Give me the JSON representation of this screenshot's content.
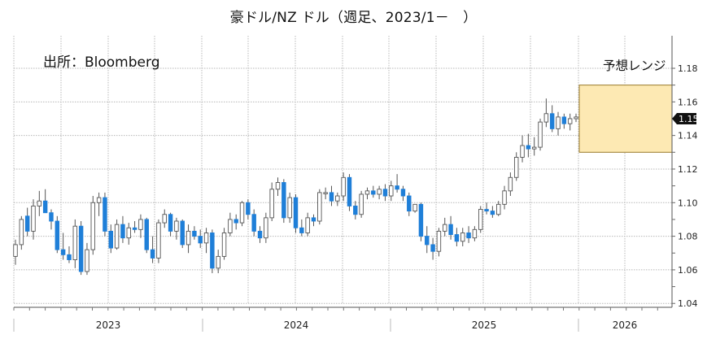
{
  "title": "豪ドル/NZ ドル（週足、2023/1－　）",
  "source_label": "出所：Bloomberg",
  "range_label": "予想レンジ",
  "colors": {
    "up_fill": "#ffffff",
    "up_stroke": "#555555",
    "down_fill": "#1f7fd8",
    "down_stroke": "#1f7fd8",
    "wick": "#555555",
    "grid": "#b8b8b8",
    "range_fill": "#fde9b3",
    "range_stroke": "#9a7a2a",
    "last_value_bg": "#111111"
  },
  "chart_data": {
    "type": "candlestick",
    "title": "豪ドル/NZ ドル（週足、2023/1－　）",
    "xlabel": "",
    "ylabel": "",
    "ylim": [
      1.037,
      1.19
    ],
    "yticks": [
      "1.18",
      "1.16",
      "1.14",
      "1.12",
      "1.10",
      "1.08",
      "1.06",
      "1.04"
    ],
    "xticks": [
      "2023",
      "2024",
      "2025",
      "2026"
    ],
    "last_value": "1.15",
    "forecast_range": {
      "label": "予想レンジ",
      "low": 1.13,
      "high": 1.17,
      "period": "2026"
    },
    "grid": true,
    "candles": [
      {
        "o": 1.068,
        "h": 1.078,
        "l": 1.063,
        "c": 1.075
      },
      {
        "o": 1.075,
        "h": 1.092,
        "l": 1.072,
        "c": 1.09
      },
      {
        "o": 1.092,
        "h": 1.097,
        "l": 1.08,
        "c": 1.083
      },
      {
        "o": 1.083,
        "h": 1.102,
        "l": 1.078,
        "c": 1.098
      },
      {
        "o": 1.098,
        "h": 1.107,
        "l": 1.092,
        "c": 1.101
      },
      {
        "o": 1.101,
        "h": 1.108,
        "l": 1.096,
        "c": 1.094
      },
      {
        "o": 1.094,
        "h": 1.096,
        "l": 1.084,
        "c": 1.089
      },
      {
        "o": 1.089,
        "h": 1.092,
        "l": 1.07,
        "c": 1.072
      },
      {
        "o": 1.072,
        "h": 1.082,
        "l": 1.066,
        "c": 1.069
      },
      {
        "o": 1.069,
        "h": 1.074,
        "l": 1.064,
        "c": 1.066
      },
      {
        "o": 1.066,
        "h": 1.09,
        "l": 1.061,
        "c": 1.086
      },
      {
        "o": 1.086,
        "h": 1.089,
        "l": 1.057,
        "c": 1.059
      },
      {
        "o": 1.059,
        "h": 1.076,
        "l": 1.057,
        "c": 1.072
      },
      {
        "o": 1.072,
        "h": 1.104,
        "l": 1.069,
        "c": 1.1
      },
      {
        "o": 1.1,
        "h": 1.106,
        "l": 1.092,
        "c": 1.103
      },
      {
        "o": 1.103,
        "h": 1.106,
        "l": 1.08,
        "c": 1.083
      },
      {
        "o": 1.083,
        "h": 1.087,
        "l": 1.07,
        "c": 1.073
      },
      {
        "o": 1.073,
        "h": 1.09,
        "l": 1.072,
        "c": 1.087
      },
      {
        "o": 1.087,
        "h": 1.092,
        "l": 1.076,
        "c": 1.079
      },
      {
        "o": 1.079,
        "h": 1.088,
        "l": 1.075,
        "c": 1.085
      },
      {
        "o": 1.085,
        "h": 1.089,
        "l": 1.082,
        "c": 1.084
      },
      {
        "o": 1.084,
        "h": 1.093,
        "l": 1.079,
        "c": 1.09
      },
      {
        "o": 1.09,
        "h": 1.091,
        "l": 1.07,
        "c": 1.072
      },
      {
        "o": 1.072,
        "h": 1.08,
        "l": 1.064,
        "c": 1.067
      },
      {
        "o": 1.067,
        "h": 1.09,
        "l": 1.064,
        "c": 1.088
      },
      {
        "o": 1.088,
        "h": 1.096,
        "l": 1.085,
        "c": 1.093
      },
      {
        "o": 1.093,
        "h": 1.094,
        "l": 1.08,
        "c": 1.083
      },
      {
        "o": 1.083,
        "h": 1.091,
        "l": 1.078,
        "c": 1.089
      },
      {
        "o": 1.089,
        "h": 1.09,
        "l": 1.073,
        "c": 1.075
      },
      {
        "o": 1.075,
        "h": 1.087,
        "l": 1.07,
        "c": 1.083
      },
      {
        "o": 1.083,
        "h": 1.086,
        "l": 1.078,
        "c": 1.08
      },
      {
        "o": 1.08,
        "h": 1.084,
        "l": 1.073,
        "c": 1.076
      },
      {
        "o": 1.076,
        "h": 1.085,
        "l": 1.07,
        "c": 1.082
      },
      {
        "o": 1.082,
        "h": 1.084,
        "l": 1.058,
        "c": 1.061
      },
      {
        "o": 1.061,
        "h": 1.072,
        "l": 1.058,
        "c": 1.068
      },
      {
        "o": 1.068,
        "h": 1.085,
        "l": 1.066,
        "c": 1.082
      },
      {
        "o": 1.082,
        "h": 1.094,
        "l": 1.08,
        "c": 1.09
      },
      {
        "o": 1.09,
        "h": 1.093,
        "l": 1.084,
        "c": 1.088
      },
      {
        "o": 1.088,
        "h": 1.101,
        "l": 1.086,
        "c": 1.1
      },
      {
        "o": 1.1,
        "h": 1.102,
        "l": 1.09,
        "c": 1.093
      },
      {
        "o": 1.093,
        "h": 1.096,
        "l": 1.08,
        "c": 1.083
      },
      {
        "o": 1.083,
        "h": 1.086,
        "l": 1.076,
        "c": 1.079
      },
      {
        "o": 1.079,
        "h": 1.094,
        "l": 1.076,
        "c": 1.091
      },
      {
        "o": 1.091,
        "h": 1.112,
        "l": 1.089,
        "c": 1.108
      },
      {
        "o": 1.108,
        "h": 1.115,
        "l": 1.104,
        "c": 1.112
      },
      {
        "o": 1.112,
        "h": 1.114,
        "l": 1.088,
        "c": 1.091
      },
      {
        "o": 1.091,
        "h": 1.106,
        "l": 1.088,
        "c": 1.103
      },
      {
        "o": 1.103,
        "h": 1.105,
        "l": 1.082,
        "c": 1.085
      },
      {
        "o": 1.085,
        "h": 1.09,
        "l": 1.08,
        "c": 1.082
      },
      {
        "o": 1.082,
        "h": 1.094,
        "l": 1.08,
        "c": 1.091
      },
      {
        "o": 1.091,
        "h": 1.093,
        "l": 1.086,
        "c": 1.089
      },
      {
        "o": 1.089,
        "h": 1.108,
        "l": 1.087,
        "c": 1.106
      },
      {
        "o": 1.106,
        "h": 1.109,
        "l": 1.102,
        "c": 1.106
      },
      {
        "o": 1.106,
        "h": 1.11,
        "l": 1.098,
        "c": 1.101
      },
      {
        "o": 1.101,
        "h": 1.106,
        "l": 1.098,
        "c": 1.104
      },
      {
        "o": 1.104,
        "h": 1.118,
        "l": 1.101,
        "c": 1.115
      },
      {
        "o": 1.115,
        "h": 1.117,
        "l": 1.095,
        "c": 1.098
      },
      {
        "o": 1.098,
        "h": 1.101,
        "l": 1.09,
        "c": 1.093
      },
      {
        "o": 1.093,
        "h": 1.107,
        "l": 1.091,
        "c": 1.105
      },
      {
        "o": 1.105,
        "h": 1.109,
        "l": 1.102,
        "c": 1.107
      },
      {
        "o": 1.107,
        "h": 1.11,
        "l": 1.103,
        "c": 1.105
      },
      {
        "o": 1.105,
        "h": 1.11,
        "l": 1.102,
        "c": 1.108
      },
      {
        "o": 1.108,
        "h": 1.111,
        "l": 1.101,
        "c": 1.104
      },
      {
        "o": 1.104,
        "h": 1.113,
        "l": 1.101,
        "c": 1.11
      },
      {
        "o": 1.11,
        "h": 1.117,
        "l": 1.106,
        "c": 1.108
      },
      {
        "o": 1.108,
        "h": 1.11,
        "l": 1.101,
        "c": 1.104
      },
      {
        "o": 1.104,
        "h": 1.106,
        "l": 1.092,
        "c": 1.095
      },
      {
        "o": 1.095,
        "h": 1.099,
        "l": 1.094,
        "c": 1.099
      },
      {
        "o": 1.099,
        "h": 1.1,
        "l": 1.077,
        "c": 1.08
      },
      {
        "o": 1.08,
        "h": 1.086,
        "l": 1.07,
        "c": 1.075
      },
      {
        "o": 1.075,
        "h": 1.079,
        "l": 1.066,
        "c": 1.071
      },
      {
        "o": 1.071,
        "h": 1.085,
        "l": 1.068,
        "c": 1.083
      },
      {
        "o": 1.083,
        "h": 1.091,
        "l": 1.08,
        "c": 1.087
      },
      {
        "o": 1.087,
        "h": 1.092,
        "l": 1.078,
        "c": 1.081
      },
      {
        "o": 1.081,
        "h": 1.085,
        "l": 1.074,
        "c": 1.077
      },
      {
        "o": 1.077,
        "h": 1.085,
        "l": 1.074,
        "c": 1.082
      },
      {
        "o": 1.082,
        "h": 1.086,
        "l": 1.076,
        "c": 1.079
      },
      {
        "o": 1.079,
        "h": 1.086,
        "l": 1.077,
        "c": 1.084
      },
      {
        "o": 1.084,
        "h": 1.098,
        "l": 1.082,
        "c": 1.096
      },
      {
        "o": 1.096,
        "h": 1.1,
        "l": 1.093,
        "c": 1.095
      },
      {
        "o": 1.095,
        "h": 1.098,
        "l": 1.091,
        "c": 1.093
      },
      {
        "o": 1.093,
        "h": 1.101,
        "l": 1.092,
        "c": 1.099
      },
      {
        "o": 1.099,
        "h": 1.11,
        "l": 1.096,
        "c": 1.107
      },
      {
        "o": 1.107,
        "h": 1.118,
        "l": 1.104,
        "c": 1.115
      },
      {
        "o": 1.115,
        "h": 1.13,
        "l": 1.113,
        "c": 1.127
      },
      {
        "o": 1.127,
        "h": 1.14,
        "l": 1.124,
        "c": 1.134
      },
      {
        "o": 1.134,
        "h": 1.141,
        "l": 1.127,
        "c": 1.132
      },
      {
        "o": 1.132,
        "h": 1.139,
        "l": 1.128,
        "c": 1.133
      },
      {
        "o": 1.133,
        "h": 1.15,
        "l": 1.131,
        "c": 1.148
      },
      {
        "o": 1.148,
        "h": 1.162,
        "l": 1.145,
        "c": 1.153
      },
      {
        "o": 1.153,
        "h": 1.158,
        "l": 1.142,
        "c": 1.144
      },
      {
        "o": 1.144,
        "h": 1.154,
        "l": 1.14,
        "c": 1.151
      },
      {
        "o": 1.151,
        "h": 1.153,
        "l": 1.144,
        "c": 1.147
      },
      {
        "o": 1.147,
        "h": 1.153,
        "l": 1.143,
        "c": 1.15
      },
      {
        "o": 1.15,
        "h": 1.153,
        "l": 1.148,
        "c": 1.151
      }
    ]
  }
}
